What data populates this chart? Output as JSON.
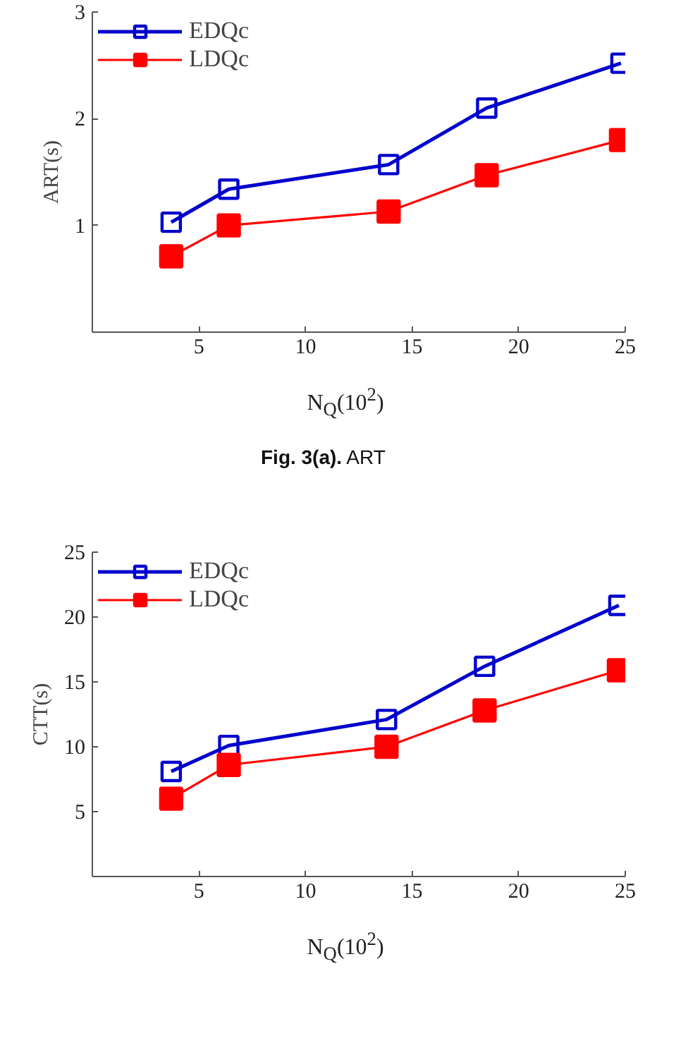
{
  "chart_data": [
    {
      "type": "line",
      "xlabel": "N$_{Q}$(10$^{2}$)",
      "ylabel": "ART(s)",
      "x": [
        3.7,
        6.4,
        13.9,
        18.5,
        24.8
      ],
      "series": [
        {
          "name": "EDQc",
          "color": "#0000cc",
          "values": [
            1.03,
            1.34,
            1.57,
            2.1,
            2.52
          ]
        },
        {
          "name": "LDQc",
          "color": "#ff0000",
          "values": [
            0.71,
            1.0,
            1.13,
            1.47,
            1.8
          ]
        }
      ],
      "xlim": [
        0,
        25
      ],
      "xticks": [
        5,
        10,
        15,
        20,
        25
      ],
      "ylim": [
        0,
        3
      ],
      "yticks": [
        1,
        2,
        3
      ],
      "grid": false,
      "legend": "top left",
      "marker": "square",
      "line_style": "solid",
      "annotations": [
        "Fig. 3(a). ART"
      ]
    },
    {
      "type": "line",
      "xlabel": "N$_{Q}$(10$^{2}$)",
      "ylabel": "CTT(s)",
      "x": [
        3.7,
        6.4,
        13.8,
        18.4,
        24.7
      ],
      "series": [
        {
          "name": "EDQc",
          "color": "#0000cc",
          "values": [
            8.1,
            10.1,
            12.1,
            16.2,
            20.9
          ]
        },
        {
          "name": "LDQc",
          "color": "#ff0000",
          "values": [
            6.0,
            8.6,
            10.0,
            12.8,
            15.9
          ]
        }
      ],
      "xlim": [
        0,
        25
      ],
      "xticks": [
        5,
        10,
        15,
        20,
        25
      ],
      "ylim": [
        0,
        25
      ],
      "yticks": [
        5,
        10,
        15,
        20,
        25
      ],
      "grid": false,
      "legend": "top left",
      "marker": "square",
      "line_style": "solid"
    }
  ]
}
